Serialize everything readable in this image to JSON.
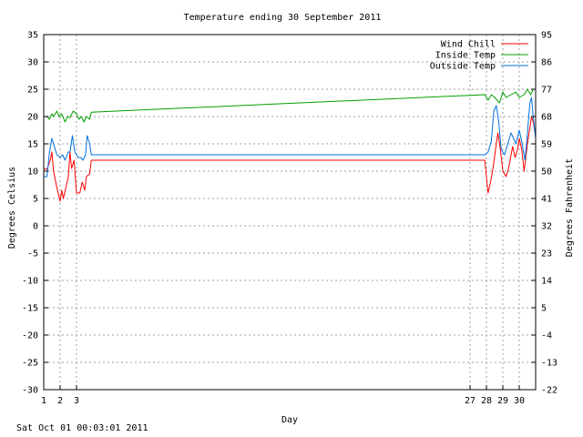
{
  "chart_data": {
    "type": "line",
    "title": "Temperature ending 30 September 2011",
    "xlabel": "Day",
    "ylabel": "Degrees Celsius",
    "y2label": "Degrees Fahrenheit",
    "xlim": [
      1,
      31
    ],
    "ylim": [
      -30,
      35
    ],
    "y2lim": [
      -22,
      95
    ],
    "x_ticks": [
      1,
      2,
      3,
      27,
      28,
      29,
      30
    ],
    "x_vlines": [
      2,
      3,
      27,
      28,
      29,
      30
    ],
    "y_ticks": [
      35,
      30,
      25,
      20,
      15,
      10,
      5,
      0,
      -5,
      -10,
      -15,
      -20,
      -25,
      -30
    ],
    "y2_ticks": [
      95,
      86,
      77,
      68,
      59,
      50,
      41,
      32,
      23,
      14,
      5,
      -4,
      -13,
      -22
    ],
    "grid": true,
    "legend_position": "top-right",
    "series": [
      {
        "name": "Wind Chill",
        "color": "#ff0000",
        "points": [
          [
            1.0,
            10.5
          ],
          [
            1.2,
            10.3
          ],
          [
            1.4,
            12.0
          ],
          [
            1.5,
            13.5
          ],
          [
            1.6,
            10.0
          ],
          [
            1.8,
            7.0
          ],
          [
            2.0,
            4.5
          ],
          [
            2.1,
            6.5
          ],
          [
            2.2,
            5.0
          ],
          [
            2.35,
            7.0
          ],
          [
            2.5,
            9.0
          ],
          [
            2.6,
            13.5
          ],
          [
            2.7,
            10.5
          ],
          [
            2.85,
            12.0
          ],
          [
            3.0,
            6.0
          ],
          [
            3.2,
            6.0
          ],
          [
            3.35,
            8.0
          ],
          [
            3.5,
            6.5
          ],
          [
            3.6,
            9.0
          ],
          [
            3.8,
            9.5
          ],
          [
            3.9,
            12.0
          ],
          [
            27.9,
            12.0
          ],
          [
            28.0,
            9.0
          ],
          [
            28.1,
            6.0
          ],
          [
            28.25,
            8.0
          ],
          [
            28.4,
            10.5
          ],
          [
            28.6,
            15.0
          ],
          [
            28.7,
            17.0
          ],
          [
            28.85,
            14.0
          ],
          [
            29.0,
            10.0
          ],
          [
            29.2,
            9.0
          ],
          [
            29.35,
            10.5
          ],
          [
            29.5,
            13.0
          ],
          [
            29.6,
            14.5
          ],
          [
            29.75,
            12.5
          ],
          [
            29.9,
            14.0
          ],
          [
            30.0,
            16.0
          ],
          [
            30.15,
            14.0
          ],
          [
            30.3,
            10.0
          ],
          [
            30.5,
            15.0
          ],
          [
            30.65,
            18.0
          ],
          [
            30.75,
            20.0
          ],
          [
            30.85,
            19.0
          ],
          [
            31.0,
            16.5
          ]
        ]
      },
      {
        "name": "Inside Temp",
        "color": "#00a000",
        "points": [
          [
            1.0,
            20.0
          ],
          [
            1.2,
            20.0
          ],
          [
            1.35,
            19.5
          ],
          [
            1.5,
            20.5
          ],
          [
            1.6,
            20.0
          ],
          [
            1.8,
            21.0
          ],
          [
            1.95,
            20.0
          ],
          [
            2.1,
            20.5
          ],
          [
            2.3,
            19.0
          ],
          [
            2.45,
            20.0
          ],
          [
            2.6,
            19.8
          ],
          [
            2.8,
            21.0
          ],
          [
            3.0,
            20.5
          ],
          [
            3.15,
            19.5
          ],
          [
            3.3,
            20.0
          ],
          [
            3.45,
            19.0
          ],
          [
            3.6,
            20.0
          ],
          [
            3.8,
            19.5
          ],
          [
            3.9,
            20.8
          ],
          [
            27.9,
            24.0
          ],
          [
            28.1,
            23.0
          ],
          [
            28.3,
            24.0
          ],
          [
            28.5,
            23.5
          ],
          [
            28.8,
            22.5
          ],
          [
            29.0,
            24.5
          ],
          [
            29.2,
            23.5
          ],
          [
            29.5,
            24.0
          ],
          [
            29.8,
            24.5
          ],
          [
            30.0,
            23.5
          ],
          [
            30.3,
            24.0
          ],
          [
            30.5,
            25.0
          ],
          [
            30.7,
            24.0
          ],
          [
            30.85,
            25.0
          ],
          [
            31.0,
            25.0
          ]
        ]
      },
      {
        "name": "Outside Temp",
        "color": "#0070e0",
        "points": [
          [
            1.0,
            9.0
          ],
          [
            1.2,
            9.0
          ],
          [
            1.35,
            13.5
          ],
          [
            1.5,
            16.0
          ],
          [
            1.6,
            15.0
          ],
          [
            1.8,
            13.0
          ],
          [
            2.0,
            12.5
          ],
          [
            2.15,
            13.0
          ],
          [
            2.3,
            12.0
          ],
          [
            2.5,
            13.5
          ],
          [
            2.6,
            13.5
          ],
          [
            2.75,
            16.5
          ],
          [
            2.9,
            13.5
          ],
          [
            3.1,
            12.5
          ],
          [
            3.25,
            12.5
          ],
          [
            3.4,
            12.0
          ],
          [
            3.55,
            13.0
          ],
          [
            3.65,
            16.5
          ],
          [
            3.8,
            15.0
          ],
          [
            3.9,
            13.0
          ],
          [
            27.9,
            13.0
          ],
          [
            28.1,
            13.5
          ],
          [
            28.3,
            15.5
          ],
          [
            28.45,
            21.0
          ],
          [
            28.6,
            22.0
          ],
          [
            28.75,
            19.0
          ],
          [
            28.9,
            14.0
          ],
          [
            29.1,
            13.0
          ],
          [
            29.3,
            15.0
          ],
          [
            29.5,
            17.0
          ],
          [
            29.65,
            16.0
          ],
          [
            29.8,
            15.0
          ],
          [
            30.0,
            17.5
          ],
          [
            30.15,
            15.5
          ],
          [
            30.35,
            12.0
          ],
          [
            30.5,
            17.0
          ],
          [
            30.65,
            22.5
          ],
          [
            30.75,
            23.5
          ],
          [
            30.85,
            20.0
          ],
          [
            31.0,
            16.0
          ]
        ]
      }
    ]
  },
  "footer": {
    "timestamp": "Sat Oct 01 00:03:01 2011"
  }
}
